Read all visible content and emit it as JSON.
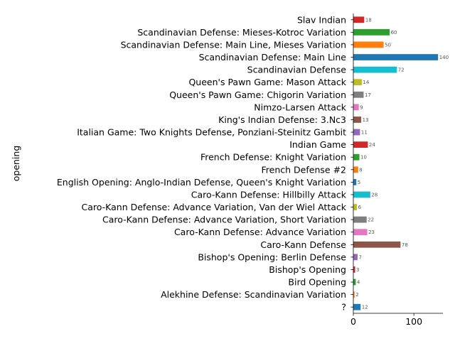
{
  "chart_data": {
    "type": "bar",
    "orientation": "horizontal",
    "ylabel": "opening",
    "xlabel": "",
    "xlim": [
      0,
      148
    ],
    "xticks": [
      0,
      100
    ],
    "grid": false,
    "legend": "none",
    "categories": [
      "?",
      "Alekhine Defense: Scandinavian Variation",
      "Bird Opening",
      "Bishop's Opening",
      "Bishop's Opening: Berlin Defense",
      "Caro-Kann Defense",
      "Caro-Kann Defense: Advance Variation",
      "Caro-Kann Defense: Advance Variation, Short Variation",
      "Caro-Kann Defense: Advance Variation, Van der Wiel Attack",
      "Caro-Kann Defense: Hillbilly Attack",
      "English Opening: Anglo-Indian Defense, Queen's Knight Variation",
      "French Defense #2",
      "French Defense: Knight Variation",
      "Indian Game",
      "Italian Game: Two Knights Defense, Ponziani-Steinitz Gambit",
      "King's Indian Defense: 3.Nc3",
      "Nimzo-Larsen Attack",
      "Queen's Pawn Game: Chigorin Variation",
      "Queen's Pawn Game: Mason Attack",
      "Scandinavian Defense",
      "Scandinavian Defense: Main Line",
      "Scandinavian Defense: Main Line, Mieses Variation",
      "Scandinavian Defense: Mieses-Kotroc Variation",
      "Slav Indian"
    ],
    "values": [
      12,
      2,
      4,
      3,
      7,
      78,
      23,
      22,
      6,
      28,
      5,
      8,
      10,
      24,
      11,
      13,
      9,
      17,
      14,
      72,
      140,
      50,
      60,
      18
    ],
    "colors": [
      "#1f77b4",
      "#ff7f0e",
      "#2ca02c",
      "#d62728",
      "#9467bd",
      "#8c564b",
      "#e377c2",
      "#7f7f7f",
      "#bcbd22",
      "#17becf"
    ]
  }
}
